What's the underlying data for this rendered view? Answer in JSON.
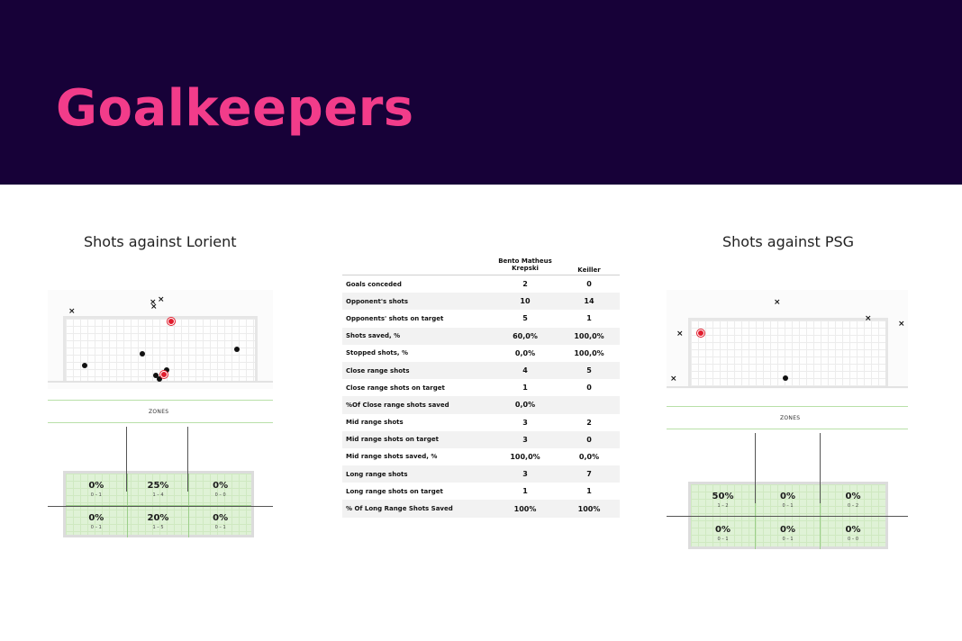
{
  "header": {
    "title": "Goalkeepers"
  },
  "left": {
    "title": "Shots against Lorient",
    "zones_label": "ZONES",
    "zones": [
      {
        "pct": "0%",
        "frac": "0 – 1"
      },
      {
        "pct": "25%",
        "frac": "1 – 4"
      },
      {
        "pct": "0%",
        "frac": "0 – 0"
      },
      {
        "pct": "0%",
        "frac": "0 – 1"
      },
      {
        "pct": "20%",
        "frac": "1 – 5"
      },
      {
        "pct": "0%",
        "frac": "0 – 1"
      }
    ]
  },
  "right": {
    "title": "Shots against PSG",
    "zones_label": "ZONES",
    "zones": [
      {
        "pct": "50%",
        "frac": "1 – 2"
      },
      {
        "pct": "0%",
        "frac": "0 – 1"
      },
      {
        "pct": "0%",
        "frac": "0 – 2"
      },
      {
        "pct": "0%",
        "frac": "0 – 1"
      },
      {
        "pct": "0%",
        "frac": "0 – 1"
      },
      {
        "pct": "0%",
        "frac": "0 – 0"
      }
    ]
  },
  "stats": {
    "col1": "Bento Matheus Krepski",
    "col2": "Keiller",
    "rows": [
      {
        "label": "Goals conceded",
        "a": "2",
        "b": "0"
      },
      {
        "label": "Opponent's shots",
        "a": "10",
        "b": "14"
      },
      {
        "label": "Opponents' shots  on target",
        "a": "5",
        "b": "1"
      },
      {
        "label": "Shots saved, %",
        "a": "60,0%",
        "b": "100,0%"
      },
      {
        "label": "Stopped shots, %",
        "a": "0,0%",
        "b": "100,0%"
      },
      {
        "label": "Close range shots",
        "a": "4",
        "b": "5"
      },
      {
        "label": "Close range shots on target",
        "a": "1",
        "b": "0"
      },
      {
        "label": "%Of Close range shots saved",
        "a": "0,0%",
        "b": ""
      },
      {
        "label": "Mid range shots",
        "a": "3",
        "b": "2"
      },
      {
        "label": "Mid range shots on target",
        "a": "3",
        "b": "0"
      },
      {
        "label": "Mid range shots saved, %",
        "a": "100,0%",
        "b": "0,0%"
      },
      {
        "label": "Long range shots",
        "a": "3",
        "b": "7"
      },
      {
        "label": "Long range shots on target",
        "a": "1",
        "b": "1"
      },
      {
        "label": "% Of Long Range Shots Saved",
        "a": "100%",
        "b": "100%"
      }
    ]
  },
  "colors": {
    "header_bg": "#170138",
    "title": "#f23c8a",
    "goal_marker": "#e11d2e",
    "zone_fill": "#dff2d6"
  }
}
